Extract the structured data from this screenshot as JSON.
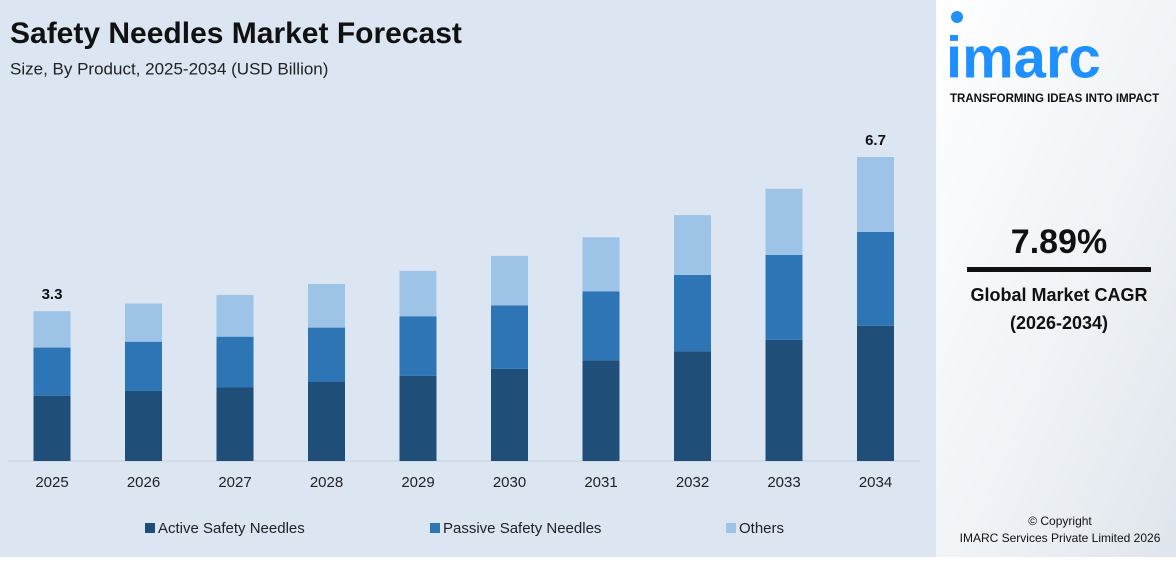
{
  "chart_data": {
    "type": "stacked-bar",
    "title": "Safety Needles Market Forecast",
    "subtitle": "Size, By Product, 2025-2034 (USD Billion)",
    "categories": [
      "2025",
      "2026",
      "2027",
      "2028",
      "2029",
      "2030",
      "2031",
      "2032",
      "2033",
      "2034"
    ],
    "series": [
      {
        "name": "Active Safety Needles",
        "color": "#1f4e79",
        "values": [
          1.44,
          1.55,
          1.62,
          1.75,
          1.88,
          2.03,
          2.22,
          2.42,
          2.67,
          2.98
        ]
      },
      {
        "name": "Passive Safety Needles",
        "color": "#2e75b6",
        "values": [
          1.06,
          1.08,
          1.12,
          1.19,
          1.31,
          1.4,
          1.52,
          1.68,
          1.87,
          2.07
        ]
      },
      {
        "name": "Others",
        "color": "#9dc3e6",
        "values": [
          0.8,
          0.84,
          0.92,
          0.96,
          1.0,
          1.09,
          1.19,
          1.32,
          1.46,
          1.65
        ]
      }
    ],
    "totals": [
      3.3,
      null,
      null,
      null,
      null,
      null,
      null,
      null,
      null,
      6.7
    ],
    "legend": "bottom"
  },
  "sidebar": {
    "logo": "imarc",
    "tagline": "TRANSFORMING IDEAS INTO IMPACT",
    "cagr": "7.89%",
    "cagr_label": "Global Market CAGR",
    "cagr_period": "(2026-2034)",
    "copyright": "© Copyright",
    "company": "IMARC Services Private Limited 2026"
  }
}
